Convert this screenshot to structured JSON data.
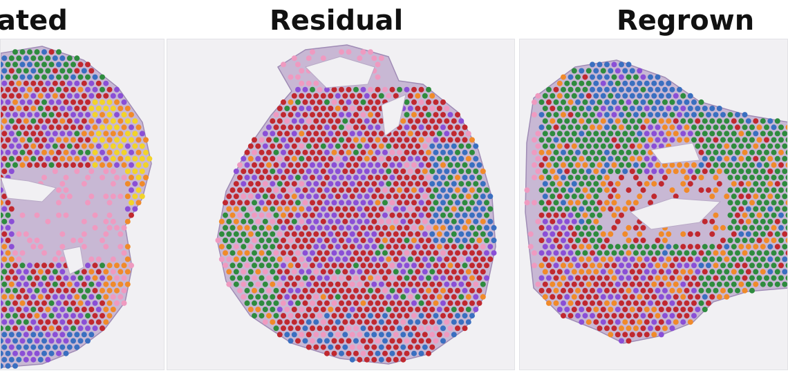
{
  "panels": [
    {
      "title": "ated",
      "name": "treated"
    },
    {
      "title": "Residual",
      "name": "residual"
    },
    {
      "title": "Regrown",
      "name": "regrown"
    }
  ],
  "palette": {
    "red": "#c0282f",
    "purple": "#8a4fd6",
    "green": "#2e8b3e",
    "orange": "#f08a2a",
    "pink": "#ef9ac0",
    "blue": "#3a6fc0",
    "yellow": "#f2d32a",
    "tissue": "#b9a6c9",
    "background": "#f1f0f3"
  }
}
